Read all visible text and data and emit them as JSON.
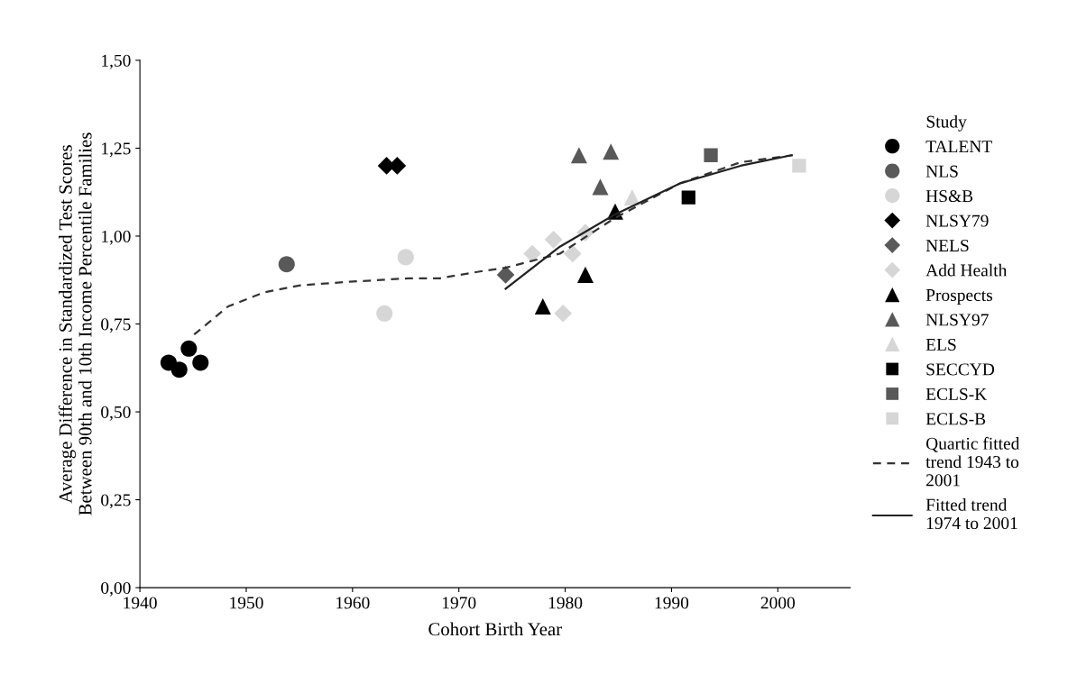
{
  "chart_data": {
    "type": "scatter",
    "xlabel": "Cohort Birth Year",
    "ylabel": "Average Difference in Standardized Test Scores\nBetween 90th and 10th Income Percentile Families",
    "legend_title": "Study",
    "legend": "right",
    "grid": false,
    "xlim": [
      1940,
      2006.8
    ],
    "xticks": [
      1940,
      1950,
      1960,
      1970,
      1980,
      1990,
      2000
    ],
    "ylim": [
      0,
      1.5
    ],
    "yticks": [
      {
        "value": 0,
        "label": "0,00"
      },
      {
        "value": 0.25,
        "label": "0,25"
      },
      {
        "value": 0.5,
        "label": "0,50"
      },
      {
        "value": 0.75,
        "label": "0,75"
      },
      {
        "value": 1.0,
        "label": "1,00"
      },
      {
        "value": 1.25,
        "label": "1,25"
      },
      {
        "value": 1.5,
        "label": "1,50"
      }
    ],
    "series": [
      {
        "name": "TALENT",
        "color": "#000000",
        "marker": "circle",
        "x": [
          1942.7,
          1943.7,
          1944.6,
          1945.7
        ],
        "values": [
          0.64,
          0.62,
          0.68,
          0.64
        ]
      },
      {
        "name": "NLS",
        "color": "#595959",
        "marker": "circle",
        "x": [
          1953.8
        ],
        "values": [
          0.92
        ]
      },
      {
        "name": "HS&B",
        "color": "#d6d6d6",
        "marker": "circle",
        "x": [
          1963.0,
          1965.0
        ],
        "values": [
          0.78,
          0.94
        ]
      },
      {
        "name": "NLSY79",
        "color": "#000000",
        "marker": "diamond",
        "x": [
          1963.2,
          1964.2
        ],
        "values": [
          1.2,
          1.2
        ]
      },
      {
        "name": "NELS",
        "color": "#595959",
        "marker": "diamond",
        "x": [
          1974.4
        ],
        "values": [
          0.89
        ]
      },
      {
        "name": "Add Health",
        "color": "#d6d6d6",
        "marker": "diamond",
        "x": [
          1976.9,
          1978.9,
          1979.8,
          1980.7,
          1981.9
        ],
        "values": [
          0.95,
          0.99,
          0.78,
          0.95,
          1.01
        ]
      },
      {
        "name": "Prospects",
        "color": "#000000",
        "marker": "triangle",
        "x": [
          1977.9,
          1981.9,
          1984.7
        ],
        "values": [
          0.8,
          0.89,
          1.07
        ]
      },
      {
        "name": "NLSY97",
        "color": "#595959",
        "marker": "triangle",
        "x": [
          1981.3,
          1983.3,
          1984.3
        ],
        "values": [
          1.23,
          1.14,
          1.24
        ]
      },
      {
        "name": "ELS",
        "color": "#d6d6d6",
        "marker": "triangle",
        "x": [
          1986.3
        ],
        "values": [
          1.11
        ]
      },
      {
        "name": "SECCYD",
        "color": "#000000",
        "marker": "square",
        "x": [
          1991.6
        ],
        "values": [
          1.11
        ]
      },
      {
        "name": "ECLS-K",
        "color": "#595959",
        "marker": "square",
        "x": [
          1993.7
        ],
        "values": [
          1.23
        ]
      },
      {
        "name": "ECLS-B",
        "color": "#d6d6d6",
        "marker": "square",
        "x": [
          2002.0
        ],
        "values": [
          1.2
        ]
      },
      {
        "name": "Quartic fitted trend 1943 to 2001",
        "type": "line",
        "line_style": "dashed",
        "marker": "none",
        "color": "#333333",
        "x": [
          1945.1,
          1948.3,
          1951.7,
          1955.1,
          1959.7,
          1965.3,
          1968.2,
          1972.1,
          1974.4,
          1979.5,
          1984.6,
          1990.8,
          1996.5,
          2001.4
        ],
        "values": [
          0.72,
          0.8,
          0.84,
          0.86,
          0.87,
          0.88,
          0.88,
          0.9,
          0.91,
          0.95,
          1.05,
          1.15,
          1.21,
          1.23
        ]
      },
      {
        "name": "Fitted trend 1974 to 2001",
        "type": "line",
        "line_style": "solid",
        "marker": "none",
        "color": "#222222",
        "x": [
          1974.4,
          1979.5,
          1984.6,
          1990.8,
          1996.5,
          2001.3
        ],
        "values": [
          0.85,
          0.97,
          1.06,
          1.15,
          1.2,
          1.23
        ]
      }
    ]
  }
}
